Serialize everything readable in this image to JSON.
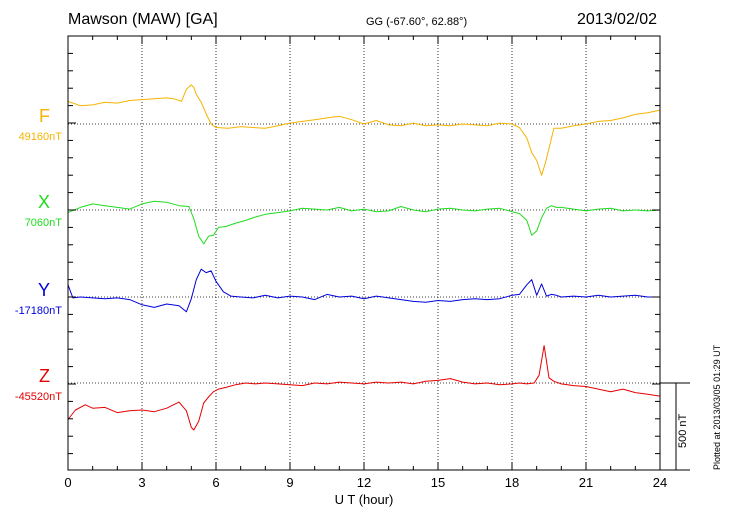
{
  "header": {
    "station": "Mawson (MAW)  [GA]",
    "coords": "GG (-67.60°,  62.88°)",
    "date": "2013/02/02"
  },
  "components": [
    {
      "letter": "F",
      "baseline": "49160nT",
      "color": "#f5b400"
    },
    {
      "letter": "X",
      "baseline": "7060nT",
      "color": "#1fdc1f"
    },
    {
      "letter": "Y",
      "baseline": "-17180nT",
      "color": "#0000dd"
    },
    {
      "letter": "Z",
      "baseline": "-45520nT",
      "color": "#e60000"
    }
  ],
  "scale_bar_label": "500 nT",
  "plotted_note": "Plotted at 2013/03/05 01:29 UT",
  "chart_data": {
    "type": "line",
    "xlabel": "U T (hour)",
    "xlim": [
      0,
      24
    ],
    "xticks": [
      0,
      3,
      6,
      9,
      12,
      15,
      18,
      21,
      24
    ],
    "scale_nT": 500,
    "grid": "dotted vertical every 3 h; dotted baseline per component",
    "series": [
      {
        "name": "F",
        "units": "nT offset from 49160nT",
        "x": [
          0,
          0.5,
          1,
          1.5,
          2,
          2.5,
          3,
          3.5,
          4,
          4.3,
          4.6,
          4.8,
          5.0,
          5.1,
          5.2,
          5.4,
          5.6,
          5.8,
          6,
          6.5,
          7,
          7.5,
          8,
          8.5,
          9,
          9.5,
          10,
          10.5,
          11,
          11.5,
          12,
          12.5,
          13,
          13.5,
          14,
          14.5,
          15,
          15.5,
          16,
          16.5,
          17,
          17.5,
          18,
          18.3,
          18.6,
          18.8,
          19.0,
          19.2,
          19.35,
          19.5,
          19.7,
          20,
          20.5,
          21,
          21.5,
          22,
          22.5,
          23,
          23.5,
          24
        ],
        "y": [
          130,
          105,
          110,
          125,
          120,
          135,
          140,
          145,
          150,
          145,
          130,
          200,
          225,
          210,
          170,
          125,
          60,
          0,
          -20,
          -25,
          -15,
          -20,
          -25,
          -10,
          5,
          15,
          25,
          35,
          45,
          25,
          0,
          20,
          -5,
          -10,
          5,
          -10,
          -5,
          -10,
          0,
          -5,
          -10,
          5,
          0,
          -20,
          -80,
          -165,
          -210,
          -295,
          -225,
          -140,
          -25,
          -25,
          -10,
          0,
          15,
          20,
          35,
          55,
          65,
          80
        ]
      },
      {
        "name": "X",
        "units": "nT offset from 7060nT",
        "x": [
          0,
          0.5,
          1,
          1.5,
          2,
          2.5,
          3,
          3.5,
          4,
          4.5,
          4.9,
          5.1,
          5.3,
          5.5,
          5.7,
          5.9,
          6.1,
          6.4,
          6.8,
          7.2,
          7.6,
          8,
          8.5,
          9,
          9.5,
          10,
          10.5,
          11,
          11.5,
          12,
          12.5,
          13,
          13.5,
          14,
          14.5,
          15,
          15.5,
          16,
          16.5,
          17,
          17.5,
          18,
          18.3,
          18.6,
          18.8,
          19.0,
          19.2,
          19.4,
          19.6,
          19.8,
          20,
          20.5,
          21,
          21.5,
          22,
          22.5,
          23,
          23.5,
          24
        ],
        "y": [
          -15,
          15,
          35,
          25,
          15,
          5,
          35,
          50,
          45,
          25,
          20,
          -50,
          -150,
          -195,
          -150,
          -145,
          -100,
          -95,
          -75,
          -60,
          -40,
          -25,
          -15,
          -5,
          10,
          5,
          0,
          15,
          -5,
          5,
          -10,
          -5,
          20,
          0,
          -10,
          5,
          10,
          0,
          -5,
          5,
          10,
          -10,
          -20,
          -60,
          -145,
          -120,
          -45,
          10,
          25,
          15,
          15,
          5,
          -5,
          5,
          10,
          -5,
          0,
          -5,
          0
        ]
      },
      {
        "name": "Y",
        "units": "nT offset from -17180nT",
        "x": [
          0,
          0.2,
          0.5,
          1,
          1.5,
          2,
          2.5,
          3,
          3.5,
          4,
          4.5,
          4.8,
          5.0,
          5.2,
          5.4,
          5.6,
          5.8,
          6,
          6.3,
          6.6,
          7,
          7.5,
          8,
          8.5,
          9,
          9.5,
          10,
          10.5,
          11,
          11.5,
          12,
          12.5,
          13,
          13.5,
          14,
          14.5,
          15,
          15.5,
          16,
          16.5,
          17,
          17.5,
          18,
          18.3,
          18.6,
          18.8,
          19.0,
          19.2,
          19.4,
          19.6,
          19.8,
          20,
          20.5,
          21,
          21.5,
          22,
          22.5,
          23,
          23.5,
          24
        ],
        "y": [
          70,
          -5,
          0,
          -5,
          -10,
          -5,
          -15,
          -45,
          -60,
          -40,
          -50,
          -85,
          -10,
          100,
          160,
          140,
          150,
          90,
          30,
          5,
          0,
          -5,
          10,
          -5,
          5,
          0,
          -15,
          15,
          0,
          5,
          -10,
          5,
          -5,
          -15,
          -25,
          -30,
          -20,
          -25,
          -15,
          -10,
          -15,
          -10,
          10,
          15,
          70,
          100,
          10,
          75,
          5,
          15,
          10,
          0,
          5,
          0,
          10,
          0,
          5,
          10,
          0,
          0
        ]
      },
      {
        "name": "Z",
        "units": "nT offset from -45520nT",
        "x": [
          0,
          0.3,
          0.7,
          1,
          1.5,
          2,
          2.5,
          3,
          3.5,
          4,
          4.5,
          4.8,
          5.0,
          5.1,
          5.3,
          5.5,
          5.7,
          5.9,
          6.1,
          6.4,
          6.8,
          7.2,
          7.6,
          8,
          8.5,
          9,
          9.5,
          10,
          10.5,
          11,
          11.5,
          12,
          12.5,
          13,
          13.5,
          14,
          14.5,
          15,
          15.5,
          16,
          16.5,
          17,
          17.5,
          18,
          18.3,
          18.6,
          18.9,
          19.1,
          19.3,
          19.5,
          19.7,
          20,
          20.5,
          21,
          21.5,
          22,
          22.5,
          23,
          23.5,
          24
        ],
        "y": [
          -210,
          -155,
          -125,
          -145,
          -140,
          -170,
          -160,
          -155,
          -165,
          -145,
          -110,
          -160,
          -255,
          -270,
          -220,
          -115,
          -80,
          -50,
          -35,
          -25,
          -10,
          0,
          -5,
          0,
          -5,
          -10,
          -15,
          0,
          -5,
          5,
          0,
          -5,
          5,
          0,
          5,
          -5,
          10,
          15,
          25,
          5,
          -5,
          0,
          -10,
          -5,
          0,
          -5,
          0,
          45,
          215,
          30,
          10,
          -5,
          -15,
          -20,
          -35,
          -50,
          -35,
          -55,
          -65,
          -75
        ]
      }
    ]
  }
}
